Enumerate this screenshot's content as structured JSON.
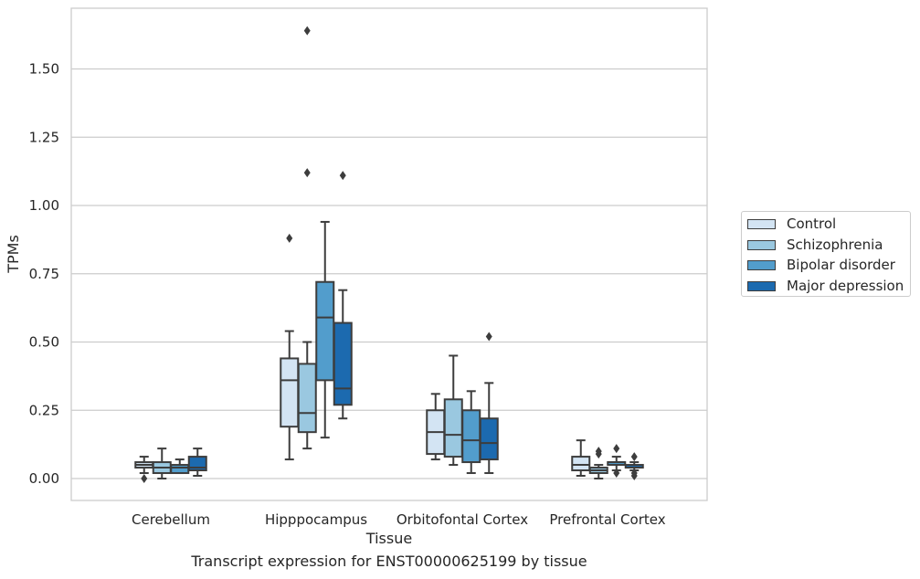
{
  "chart_data": {
    "type": "box",
    "title": "",
    "caption": "Transcript expression for ENST00000625199 by tissue",
    "xlabel": "Tissue",
    "ylabel": "TPMs",
    "ylim": [
      -0.08,
      1.73
    ],
    "yticks": [
      "0.00",
      "0.25",
      "0.50",
      "0.75",
      "1.00",
      "1.25",
      "1.50"
    ],
    "ytick_values": [
      0,
      0.25,
      0.5,
      0.75,
      1.0,
      1.25,
      1.5
    ],
    "grid": "horizontal",
    "legend_position": "right",
    "categories": [
      "Cerebellum",
      "Hipppocampus",
      "Orbitofontal Cortex",
      "Prefrontal Cortex"
    ],
    "series": [
      {
        "name": "Control",
        "color": "#d3e4f3",
        "boxes": [
          {
            "whislo": 0.02,
            "q1": 0.04,
            "med": 0.05,
            "q3": 0.06,
            "whishi": 0.08,
            "fliers": [
              0.0
            ]
          },
          {
            "whislo": 0.07,
            "q1": 0.19,
            "med": 0.36,
            "q3": 0.44,
            "whishi": 0.54,
            "fliers": [
              0.88
            ]
          },
          {
            "whislo": 0.07,
            "q1": 0.09,
            "med": 0.17,
            "q3": 0.25,
            "whishi": 0.31,
            "fliers": []
          },
          {
            "whislo": 0.01,
            "q1": 0.03,
            "med": 0.05,
            "q3": 0.08,
            "whishi": 0.14,
            "fliers": []
          }
        ]
      },
      {
        "name": "Schizophrenia",
        "color": "#9ac8e0",
        "boxes": [
          {
            "whislo": 0.0,
            "q1": 0.02,
            "med": 0.04,
            "q3": 0.06,
            "whishi": 0.11,
            "fliers": []
          },
          {
            "whislo": 0.11,
            "q1": 0.17,
            "med": 0.24,
            "q3": 0.42,
            "whishi": 0.5,
            "fliers": [
              1.12,
              1.64
            ]
          },
          {
            "whislo": 0.05,
            "q1": 0.08,
            "med": 0.16,
            "q3": 0.29,
            "whishi": 0.45,
            "fliers": []
          },
          {
            "whislo": 0.0,
            "q1": 0.02,
            "med": 0.03,
            "q3": 0.04,
            "whishi": 0.05,
            "fliers": [
              0.09,
              0.1
            ]
          }
        ]
      },
      {
        "name": "Bipolar disorder",
        "color": "#529dcc",
        "boxes": [
          {
            "whislo": 0.02,
            "q1": 0.02,
            "med": 0.04,
            "q3": 0.05,
            "whishi": 0.07,
            "fliers": []
          },
          {
            "whislo": 0.15,
            "q1": 0.36,
            "med": 0.59,
            "q3": 0.72,
            "whishi": 0.94,
            "fliers": []
          },
          {
            "whislo": 0.02,
            "q1": 0.06,
            "med": 0.14,
            "q3": 0.25,
            "whishi": 0.32,
            "fliers": []
          },
          {
            "whislo": 0.03,
            "q1": 0.05,
            "med": 0.06,
            "q3": 0.06,
            "whishi": 0.08,
            "fliers": [
              0.02,
              0.11
            ]
          }
        ]
      },
      {
        "name": "Major depression",
        "color": "#1c6aaf",
        "boxes": [
          {
            "whislo": 0.01,
            "q1": 0.03,
            "med": 0.04,
            "q3": 0.08,
            "whishi": 0.11,
            "fliers": []
          },
          {
            "whislo": 0.22,
            "q1": 0.27,
            "med": 0.33,
            "q3": 0.57,
            "whishi": 0.69,
            "fliers": [
              1.11
            ]
          },
          {
            "whislo": 0.02,
            "q1": 0.07,
            "med": 0.13,
            "q3": 0.22,
            "whishi": 0.35,
            "fliers": [
              0.52
            ]
          },
          {
            "whislo": 0.03,
            "q1": 0.04,
            "med": 0.04,
            "q3": 0.05,
            "whishi": 0.06,
            "fliers": [
              0.01,
              0.02,
              0.08
            ]
          }
        ]
      }
    ]
  }
}
